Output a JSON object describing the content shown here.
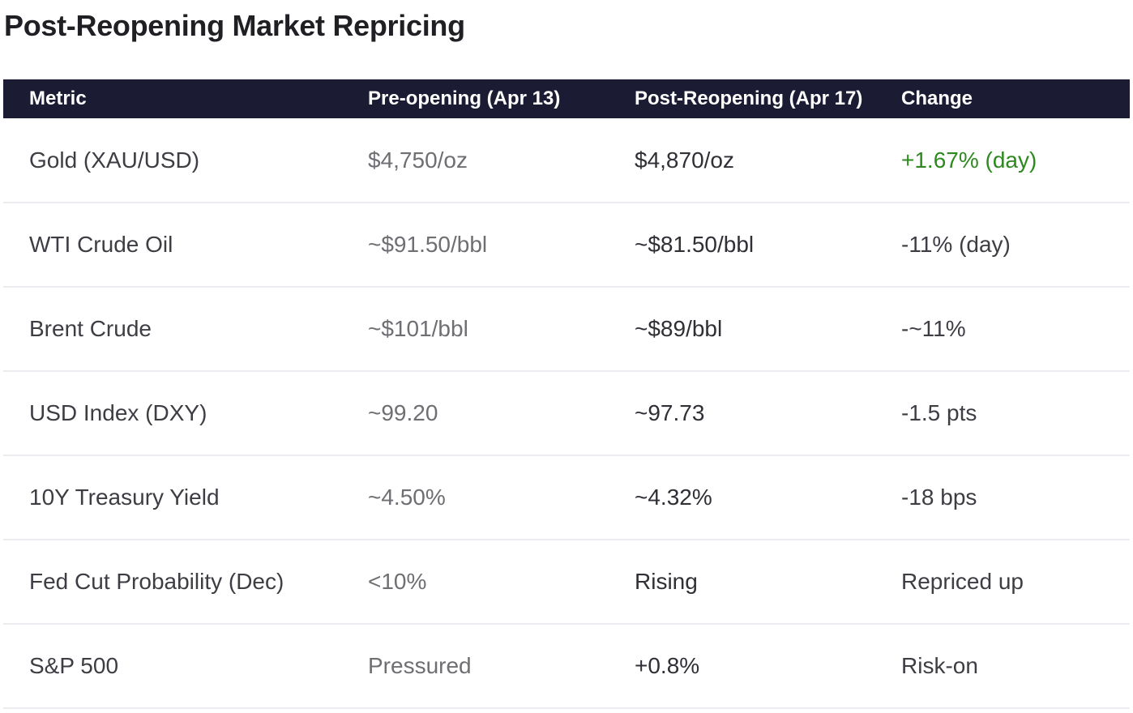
{
  "page": {
    "title": "Post-Reopening Market Repricing"
  },
  "table": {
    "headers": {
      "metric": "Metric",
      "pre": "Pre-opening (Apr 13)",
      "post": "Post-Reopening (Apr 17)",
      "change": "Change"
    },
    "rows": [
      {
        "metric": "Gold (XAU/USD)",
        "pre": "$4,750/oz",
        "post": "$4,870/oz",
        "change": "+1.67% (day)",
        "change_tone": "positive"
      },
      {
        "metric": "WTI Crude Oil",
        "pre": "~$91.50/bbl",
        "post": "~$81.50/bbl",
        "change": "-11% (day)",
        "change_tone": "neutral"
      },
      {
        "metric": "Brent Crude",
        "pre": "~$101/bbl",
        "post": "~$89/bbl",
        "change": "-~11%",
        "change_tone": "neutral"
      },
      {
        "metric": "USD Index (DXY)",
        "pre": "~99.20",
        "post": "~97.73",
        "change": "-1.5 pts",
        "change_tone": "neutral"
      },
      {
        "metric": "10Y Treasury Yield",
        "pre": "~4.50%",
        "post": "~4.32%",
        "change": "-18 bps",
        "change_tone": "neutral"
      },
      {
        "metric": "Fed Cut Probability (Dec)",
        "pre": "<10%",
        "post": "Rising",
        "change": "Repriced up",
        "change_tone": "neutral"
      },
      {
        "metric": "S&P 500",
        "pre": "Pressured",
        "post": "+0.8%",
        "change": "Risk-on",
        "change_tone": "neutral"
      }
    ]
  },
  "colors": {
    "header_bg": "#1b1c33",
    "header_text": "#ffffff",
    "positive": "#2e8a1f",
    "row_divider": "#ececf0"
  }
}
